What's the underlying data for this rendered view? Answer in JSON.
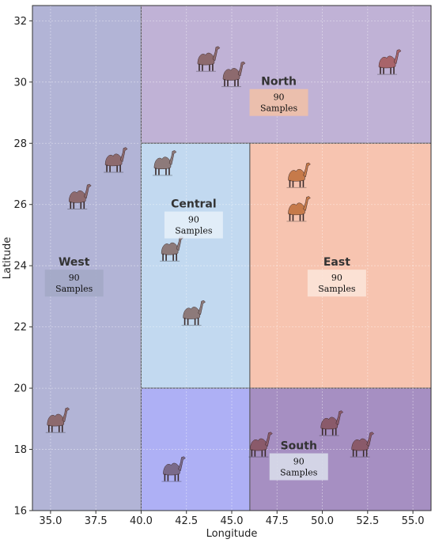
{
  "chart_data": {
    "type": "region_map",
    "xlabel": "Longitude",
    "ylabel": "Latitude",
    "xlim": [
      34.0,
      56.0
    ],
    "ylim": [
      16.0,
      32.5
    ],
    "xticks": [
      35.0,
      37.5,
      40.0,
      42.5,
      45.0,
      47.5,
      50.0,
      52.5,
      55.0
    ],
    "xtick_labels": [
      "35.0",
      "37.5",
      "40.0",
      "42.5",
      "45.0",
      "47.5",
      "50.0",
      "52.5",
      "55.0"
    ],
    "yticks": [
      16,
      18,
      20,
      22,
      24,
      26,
      28,
      30,
      32
    ],
    "ytick_labels": [
      "16",
      "18",
      "20",
      "22",
      "24",
      "26",
      "28",
      "30",
      "32"
    ],
    "grid": true,
    "regions": [
      {
        "name": "West",
        "lon_range": [
          34.0,
          40.0
        ],
        "lat_range": [
          16.0,
          32.5
        ],
        "color": "#b2b4d6",
        "label_point": [
          36.3,
          24.0
        ],
        "sample_count": "90",
        "sample_word": "Samples",
        "box_color": "#a3a8c6",
        "camels": [
          [
            38.5,
            27.4,
            "#8d6a6e"
          ],
          [
            36.5,
            26.2,
            "#8d6a6e"
          ],
          [
            35.3,
            18.9,
            "#8d6a6e"
          ]
        ]
      },
      {
        "name": "North",
        "lon_range": [
          40.0,
          56.0
        ],
        "lat_range": [
          28.0,
          32.5
        ],
        "color": "#c0b2d6",
        "label_point": [
          47.6,
          29.9
        ],
        "sample_count": "90",
        "sample_word": "Samples",
        "box_color": "#f0c0a8",
        "camels": [
          [
            43.6,
            30.7,
            "#8d6a6e"
          ],
          [
            45.0,
            30.2,
            "#8d6a6e"
          ],
          [
            53.6,
            30.6,
            "#a8646a"
          ]
        ]
      },
      {
        "name": "Central",
        "lon_range": [
          40.0,
          46.0
        ],
        "lat_range": [
          20.0,
          28.0
        ],
        "color": "#c2d9f0",
        "label_point": [
          42.9,
          25.9
        ],
        "sample_count": "90",
        "sample_word": "Samples",
        "box_color": "#e4eef8",
        "camels": [
          [
            41.2,
            27.3,
            "#8d7a7a"
          ],
          [
            41.6,
            24.5,
            "#8d7a7a"
          ],
          [
            42.8,
            22.4,
            "#8d7a7a"
          ]
        ]
      },
      {
        "name": "East",
        "lon_range": [
          46.0,
          56.0
        ],
        "lat_range": [
          20.0,
          28.0
        ],
        "color": "#f7c4b0",
        "label_point": [
          50.8,
          24.0
        ],
        "sample_count": "90",
        "sample_word": "Samples",
        "box_color": "#fbe4d8",
        "camels": [
          [
            48.6,
            26.9,
            "#c67a4a"
          ],
          [
            48.6,
            25.8,
            "#c67a4a"
          ]
        ]
      },
      {
        "name": "South",
        "lon_range": [
          40.0,
          46.0
        ],
        "lat_range": [
          16.0,
          20.0
        ],
        "color": "#aeb0f5",
        "label_point": null,
        "sample_count": null,
        "sample_word": null,
        "box_color": null,
        "camels": [
          [
            41.7,
            17.3,
            "#7a6a8a"
          ]
        ]
      },
      {
        "name": "South",
        "lon_range": [
          46.0,
          56.0
        ],
        "lat_range": [
          16.0,
          20.0
        ],
        "color": "#a68fc2",
        "label_point": [
          48.7,
          18.0
        ],
        "sample_count": "90",
        "sample_word": "Samples",
        "box_color": "#d8dcea",
        "camels": [
          [
            46.5,
            18.1,
            "#8a5a6a"
          ],
          [
            50.4,
            18.8,
            "#8a5a6a"
          ],
          [
            52.1,
            18.1,
            "#8a5a6a"
          ]
        ]
      }
    ]
  }
}
